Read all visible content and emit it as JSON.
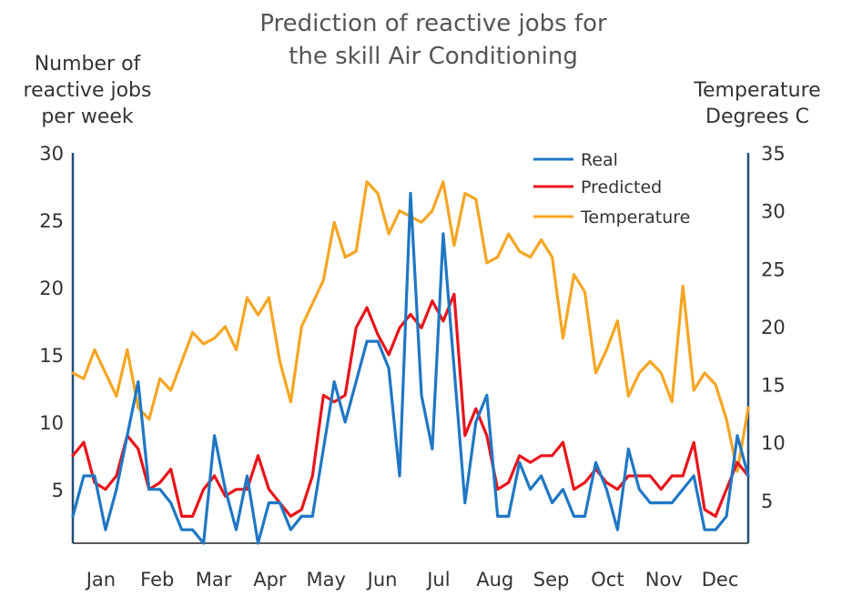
{
  "chart_data": {
    "type": "line",
    "title_lines": [
      "Prediction of reactive jobs for",
      "the skill Air Conditioning"
    ],
    "ylabel_left_lines": [
      "Number of",
      "reactive jobs",
      "per week"
    ],
    "ylabel_right_lines": [
      "Temperature",
      "Degrees C"
    ],
    "ylim_left": [
      1,
      30
    ],
    "ylim_right": [
      1.3,
      35
    ],
    "yticks_left": [
      5,
      10,
      15,
      20,
      25,
      30
    ],
    "yticks_right": [
      5,
      10,
      15,
      20,
      25,
      30,
      35
    ],
    "months": [
      "Jan",
      "Feb",
      "Mar",
      "Apr",
      "May",
      "Jun",
      "Jul",
      "Aug",
      "Sep",
      "Oct",
      "Nov",
      "Dec"
    ],
    "legend_position": "top-right",
    "series": [
      {
        "name": "Real",
        "axis": "left",
        "color": "#1f77c4",
        "values": [
          3,
          6,
          6,
          2,
          5,
          9,
          13,
          5,
          5,
          4,
          2,
          2,
          1,
          9,
          5,
          2,
          6,
          1,
          4,
          4,
          2,
          3,
          3,
          8,
          13,
          10,
          13,
          16,
          16,
          14,
          6,
          27,
          12,
          8,
          24,
          14,
          4,
          10,
          12,
          3,
          3,
          7,
          5,
          6,
          4,
          5,
          3,
          3,
          7,
          5,
          2,
          8,
          5,
          4,
          4,
          4,
          5,
          6,
          2,
          2,
          3,
          9,
          6
        ]
      },
      {
        "name": "Predicted",
        "axis": "left",
        "color": "#e8141b",
        "values": [
          7.5,
          8.5,
          5.5,
          5,
          6,
          9,
          8,
          5,
          5.5,
          6.5,
          3,
          3,
          5,
          6,
          4.5,
          5,
          5,
          7.5,
          5,
          4,
          3,
          3.5,
          6,
          12,
          11.5,
          12,
          17,
          18.5,
          16.5,
          15,
          17,
          18,
          17,
          19,
          17.5,
          19.5,
          9,
          11,
          9,
          5,
          5.5,
          7.5,
          7,
          7.5,
          7.5,
          8.5,
          5,
          5.5,
          6.5,
          5.5,
          5,
          6,
          6,
          6,
          5,
          6,
          6,
          8.5,
          3.5,
          3,
          5,
          7,
          6
        ]
      },
      {
        "name": "Temperature",
        "axis": "right",
        "color": "#f5a623",
        "values": [
          16,
          15.5,
          18,
          16,
          14,
          18,
          13,
          12,
          15.5,
          14.5,
          17,
          19.5,
          18.5,
          19,
          20,
          18,
          22.5,
          21,
          22.5,
          17,
          13.5,
          20,
          22,
          24,
          29,
          26,
          26.5,
          32.5,
          31.5,
          28,
          30,
          29.5,
          29,
          30,
          32.5,
          27,
          31.5,
          31,
          25.5,
          26,
          28,
          26.5,
          26,
          27.5,
          26,
          19,
          24.5,
          23,
          16,
          18,
          20.5,
          14,
          16,
          17,
          16,
          13.5,
          23.5,
          14.5,
          16,
          15,
          12,
          7.5,
          13
        ]
      }
    ]
  }
}
